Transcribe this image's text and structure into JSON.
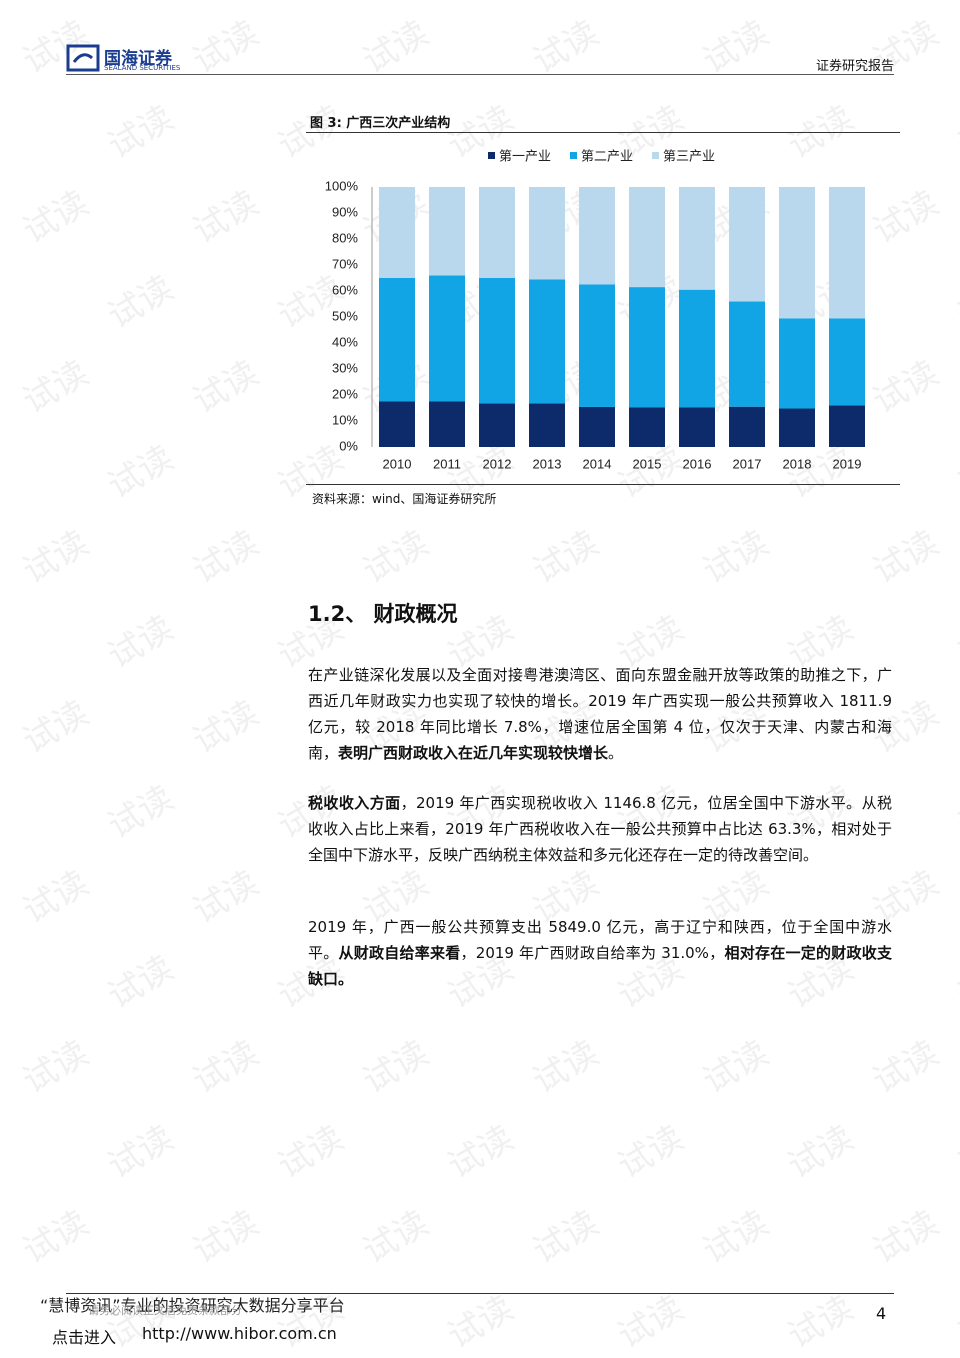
{
  "header": {
    "logo": "国海证券",
    "logo_sub": "SEALAND SECURITIES",
    "report_type": "证券研究报告"
  },
  "figure": {
    "caption": "图 3:  广西三次产业结构",
    "source": "资料来源：wind、国海证券研究所"
  },
  "chart_data": {
    "type": "stacked_bar",
    "categories": [
      "2010",
      "2011",
      "2012",
      "2013",
      "2014",
      "2015",
      "2016",
      "2017",
      "2018",
      "2019"
    ],
    "series": [
      {
        "name": "第一产业",
        "color": "#0d2a6b",
        "values": [
          17.5,
          17.5,
          16.8,
          16.8,
          15.4,
          15.3,
          15.3,
          15.5,
          14.8,
          16.0
        ]
      },
      {
        "name": "第二产业",
        "color": "#12a5e6",
        "values": [
          47.5,
          48.5,
          48.2,
          47.7,
          47.1,
          46.2,
          45.2,
          40.5,
          34.7,
          33.5
        ]
      },
      {
        "name": "第三产业",
        "color": "#b9d8ee",
        "values": [
          35,
          34,
          35,
          35.5,
          37.5,
          38.5,
          39.5,
          44,
          50.5,
          50.5
        ]
      }
    ],
    "ylim": [
      0,
      100
    ],
    "yticks": [
      {
        "value": 0,
        "label": "0%"
      },
      {
        "value": 10,
        "label": "10%"
      },
      {
        "value": 20,
        "label": "20%"
      },
      {
        "value": 30,
        "label": "30%"
      },
      {
        "value": 40,
        "label": "40%"
      },
      {
        "value": 50,
        "label": "50%"
      },
      {
        "value": 60,
        "label": "60%"
      },
      {
        "value": 70,
        "label": "70%"
      },
      {
        "value": 80,
        "label": "80%"
      },
      {
        "value": 90,
        "label": "90%"
      },
      {
        "value": 100,
        "label": "100%"
      }
    ],
    "legend": "top"
  },
  "section": {
    "heading": "1.2、  财政概况"
  },
  "paragraphs": [
    [
      {
        "text": "在产业链深化发展以及全面对接粤港澳湾区、面向东盟金融开放等政策的助推之下，广西近几年财政实力也实现了较快的增长。2019 年广西实现一般公共预算收入 1811.9 亿元，较 2018 年同比增长 7.8%，增速位居全国第 4 位，仅次于天津、内蒙古和海南，",
        "bold": false
      },
      {
        "text": "表明广西财政收入在近几年实现较快增长",
        "bold": true
      },
      {
        "text": "。",
        "bold": false
      }
    ],
    [
      {
        "text": "税收收入方面",
        "bold": true
      },
      {
        "text": "，2019 年广西实现税收收入 1146.8 亿元，位居全国中下游水平。从税收收入占比上来看，2019 年广西税收收入在一般公共预算中占比达 63.3%，相对处于全国中下游水平，反映广西纳税主体效益和多元化还存在一定的待改善空间。",
        "bold": false
      }
    ],
    [
      {
        "text": "2019 年，广西一般公共预算支出 5849.0 亿元，高于辽宁和陕西，位于全国中游水平。",
        "bold": false
      },
      {
        "text": "从财政自给率来看",
        "bold": true
      },
      {
        "text": "，2019 年广西财政自给率为 31.0%，",
        "bold": false
      },
      {
        "text": "相对存在一定的财政收支缺口。",
        "bold": true
      }
    ]
  ],
  "footer": {
    "platform": "“慧博资讯”专业的投资研究大数据分享平台",
    "disclaimer": "请务必阅读正文后免责条款部分",
    "link_prefix": "点击进入",
    "link": "http://www.hibor.com.cn",
    "page": "4"
  },
  "watermark": "试读"
}
